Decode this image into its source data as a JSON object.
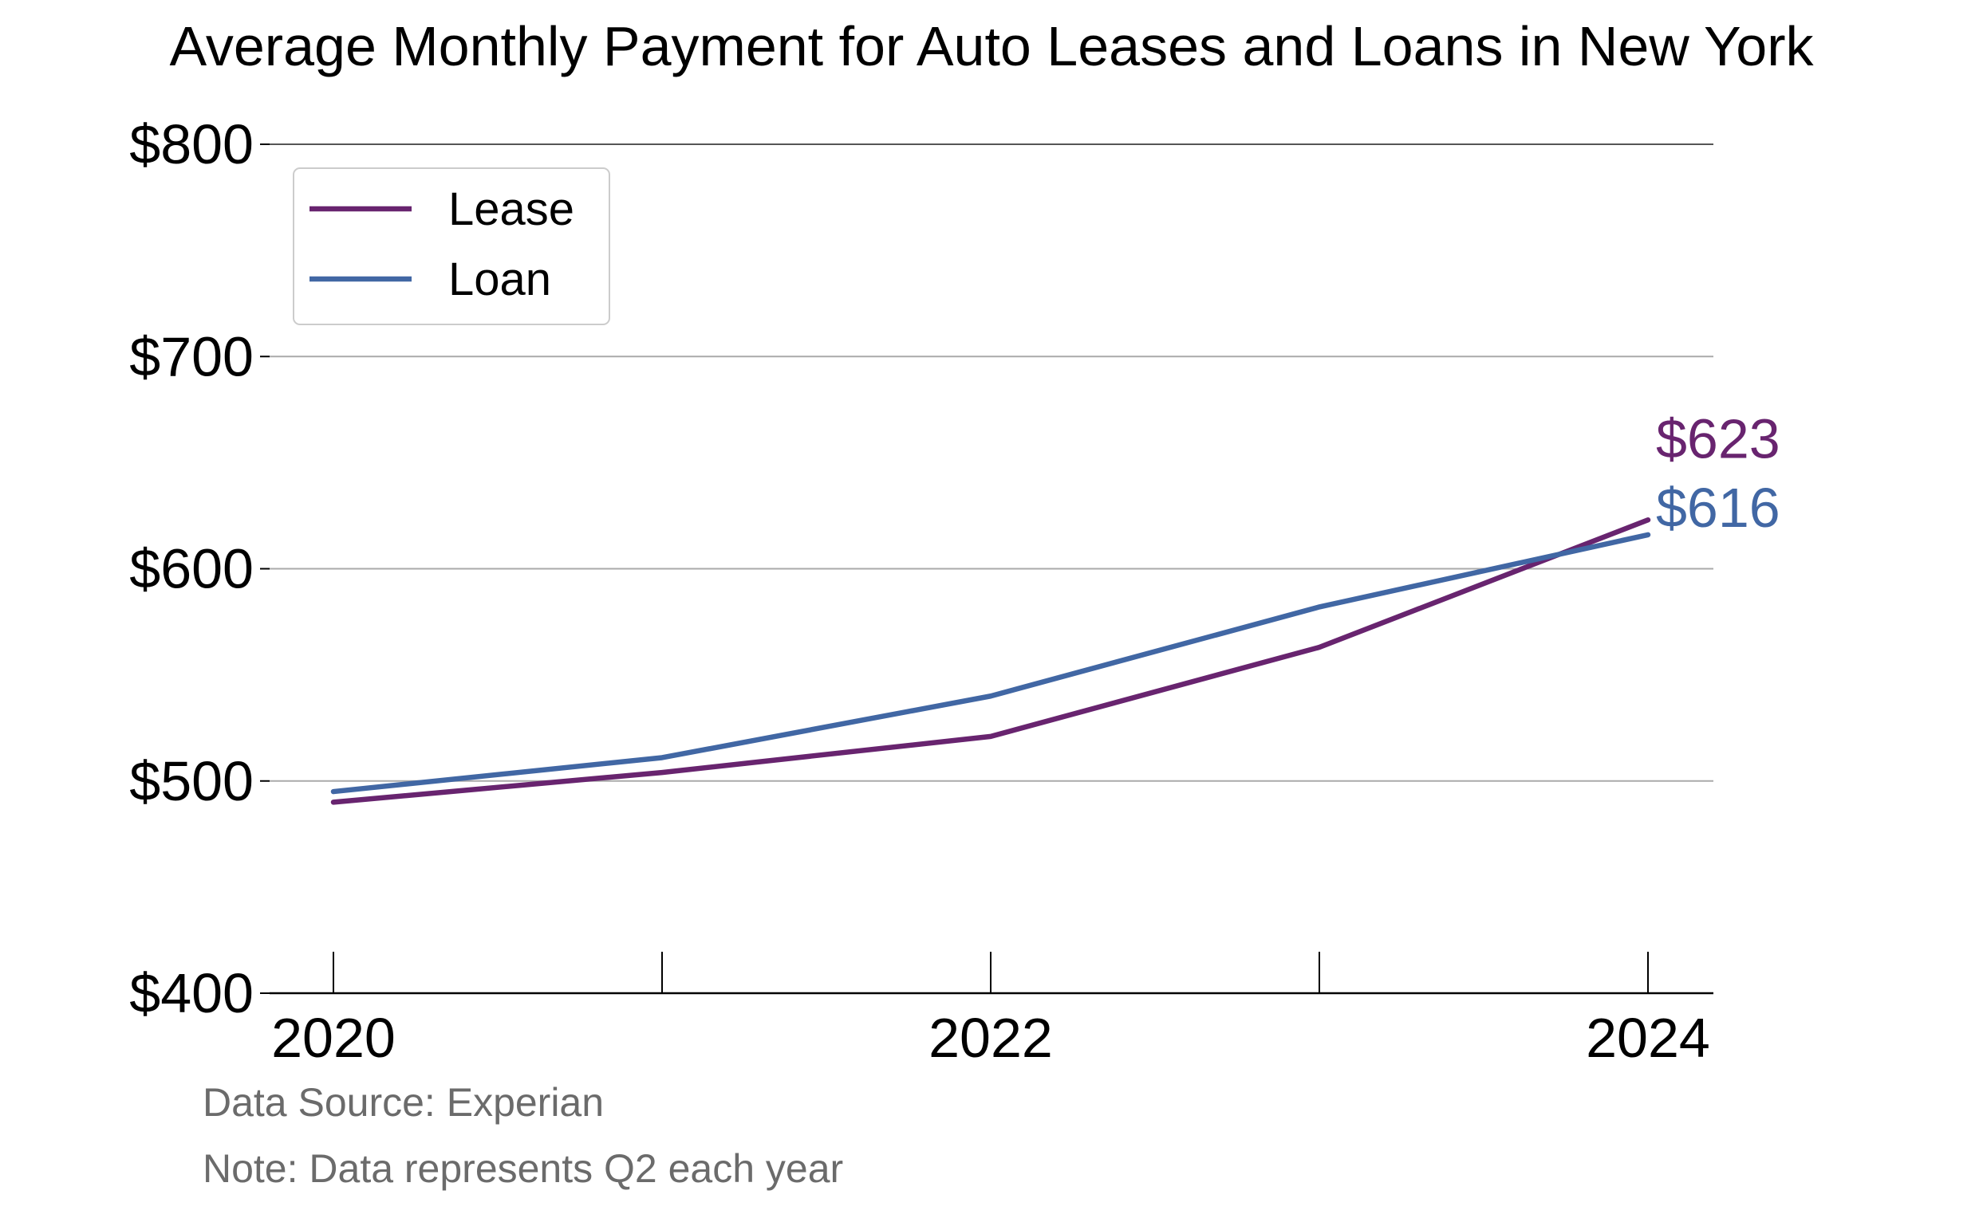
{
  "chart_data": {
    "type": "line",
    "title": "Average Monthly Payment for Auto Leases and Loans in New York",
    "xlabel": "",
    "ylabel": "",
    "x": [
      2020,
      2021,
      2022,
      2023,
      2024
    ],
    "x_tick_labels": [
      {
        "value": 2020,
        "label": "2020"
      },
      {
        "value": 2022,
        "label": "2022"
      },
      {
        "value": 2024,
        "label": "2024"
      }
    ],
    "x_minor_ticks": [
      2020,
      2021,
      2022,
      2023,
      2024
    ],
    "ylim": [
      400,
      800
    ],
    "y_ticks": [
      {
        "value": 400,
        "label": "$400"
      },
      {
        "value": 500,
        "label": "$500"
      },
      {
        "value": 600,
        "label": "$600"
      },
      {
        "value": 700,
        "label": "$700"
      },
      {
        "value": 800,
        "label": "$800"
      }
    ],
    "series": [
      {
        "name": "Lease",
        "color": "#68246f",
        "values": [
          490,
          504,
          521,
          563,
          623
        ],
        "end_label": "$623"
      },
      {
        "name": "Loan",
        "color": "#4167a4",
        "values": [
          495,
          511,
          540,
          582,
          616
        ],
        "end_label": "$616"
      }
    ],
    "grid": "horizontal",
    "legend_position": "top-left",
    "footnotes": [
      "Data Source: Experian",
      "Note: Data represents Q2 each year"
    ]
  }
}
